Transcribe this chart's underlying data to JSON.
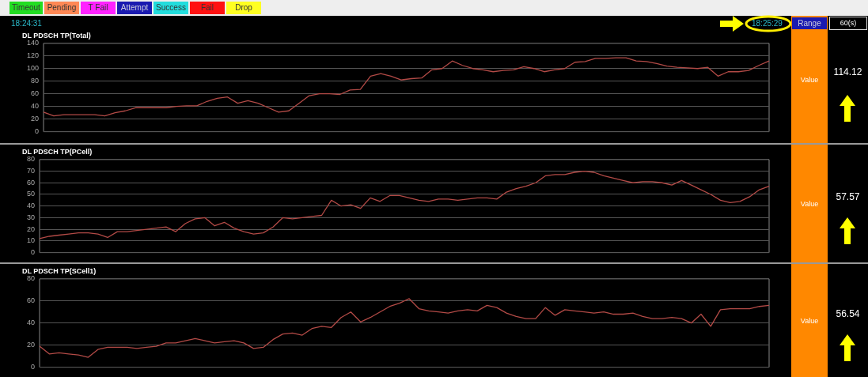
{
  "chart_data": [
    {
      "type": "other",
      "annotations": [
        "Timeout",
        "Pending",
        "T Fail",
        "Attempt",
        "Success",
        "Fail",
        "Drop",
        "18:24:31",
        "18:25:29",
        "Range",
        "60(s)"
      ],
      "colors": [
        "#22dd22",
        "#ff8855",
        "#ff22ff",
        "#1a1ab0",
        "#22dddd",
        "#ff1111",
        "#ffff22"
      ]
    },
    {
      "type": "line",
      "title": "DL PDSCH TP(Total)",
      "categories": [
        null,
        null,
        null,
        null,
        null,
        null,
        null,
        null,
        null,
        null,
        null,
        null,
        null,
        null,
        null,
        null,
        null,
        null,
        null,
        null,
        null,
        null,
        null,
        null,
        null,
        null,
        null,
        null,
        null,
        null,
        null,
        null,
        null,
        null,
        null,
        null,
        null,
        null,
        null,
        null,
        null,
        null,
        null,
        null,
        null,
        null,
        null,
        null,
        null,
        null,
        null,
        null,
        null,
        null,
        null,
        null,
        null,
        null,
        null,
        null,
        null,
        null,
        null,
        null,
        null,
        null,
        null,
        null,
        null,
        null,
        null,
        null
      ],
      "series": [
        {
          "color": "#b24a46",
          "values": [
            31,
            25,
            27,
            27,
            27,
            27,
            25,
            30,
            33,
            38,
            38,
            38,
            38,
            40,
            41,
            41,
            48,
            53,
            55,
            45,
            49,
            45,
            38,
            31,
            33,
            45,
            57,
            60,
            60,
            59,
            66,
            67,
            88,
            92,
            88,
            82,
            84,
            85,
            98,
            100,
            112,
            105,
            100,
            98,
            95,
            97,
            98,
            103,
            100,
            95,
            98,
            100,
            110,
            111,
            116,
            116,
            117,
            117,
            112,
            111,
            108,
            104,
            102,
            101,
            100,
            102,
            88,
            95,
            95,
            97,
            105,
            112
          ]
        }
      ],
      "ylim": [
        0,
        140
      ],
      "yticks": [
        0,
        20,
        40,
        60,
        80,
        100,
        120,
        140
      ],
      "grid": "y",
      "legend": false,
      "marker": "none",
      "line_style": "solid",
      "tick_labels": "y",
      "annotations": [
        "Value",
        "114.12"
      ]
    },
    {
      "type": "line",
      "title": "DL PDSCH TP(PCell)",
      "categories": [
        null,
        null,
        null,
        null,
        null,
        null,
        null,
        null,
        null,
        null,
        null,
        null,
        null,
        null,
        null,
        null,
        null,
        null,
        null,
        null,
        null,
        null,
        null,
        null,
        null,
        null,
        null,
        null,
        null,
        null,
        null,
        null,
        null,
        null,
        null,
        null,
        null,
        null,
        null,
        null,
        null,
        null,
        null,
        null,
        null,
        null,
        null,
        null,
        null,
        null,
        null,
        null,
        null,
        null,
        null,
        null,
        null,
        null,
        null,
        null,
        null,
        null,
        null,
        null,
        null,
        null,
        null,
        null,
        null,
        null,
        null,
        null,
        null,
        null,
        null,
        null
      ],
      "series": [
        {
          "color": "#b24a46",
          "values": [
            12,
            14,
            15,
            16,
            17,
            17,
            16,
            13,
            18,
            18,
            19,
            20,
            21,
            22,
            18,
            25,
            29,
            30,
            23,
            26,
            21,
            18,
            16,
            17,
            22,
            30,
            29,
            30,
            31,
            32,
            45,
            40,
            41,
            38,
            47,
            44,
            49,
            49,
            47,
            45,
            44,
            46,
            46,
            45,
            46,
            47,
            47,
            46,
            52,
            55,
            57,
            60,
            66,
            67,
            67,
            69,
            70,
            69,
            66,
            64,
            62,
            60,
            61,
            61,
            60,
            58,
            62,
            58,
            54,
            50,
            45,
            43,
            44,
            48,
            54,
            57
          ]
        }
      ],
      "ylim": [
        0,
        80
      ],
      "yticks": [
        0,
        10,
        20,
        30,
        40,
        50,
        60,
        70,
        80
      ],
      "grid": "y",
      "legend": false,
      "marker": "none",
      "line_style": "solid",
      "tick_labels": "y",
      "annotations": [
        "Value",
        "57.57"
      ]
    },
    {
      "type": "line",
      "title": "DL PDSCH TP(SCell1)",
      "categories": [
        null,
        null,
        null,
        null,
        null,
        null,
        null,
        null,
        null,
        null,
        null,
        null,
        null,
        null,
        null,
        null,
        null,
        null,
        null,
        null,
        null,
        null,
        null,
        null,
        null,
        null,
        null,
        null,
        null,
        null,
        null,
        null,
        null,
        null,
        null,
        null,
        null,
        null,
        null,
        null,
        null,
        null,
        null,
        null,
        null,
        null,
        null,
        null,
        null,
        null,
        null,
        null,
        null,
        null,
        null,
        null,
        null,
        null,
        null,
        null,
        null,
        null,
        null,
        null,
        null,
        null,
        null,
        null,
        null,
        null,
        null,
        null,
        null,
        null,
        null,
        null
      ],
      "series": [
        {
          "color": "#b24a46",
          "values": [
            19,
            12,
            13,
            12,
            11,
            9,
            16,
            18,
            18,
            18,
            17,
            18,
            19,
            22,
            22,
            24,
            26,
            24,
            22,
            23,
            24,
            22,
            17,
            18,
            25,
            30,
            31,
            29,
            35,
            37,
            36,
            45,
            50,
            41,
            45,
            50,
            55,
            58,
            62,
            53,
            51,
            50,
            49,
            51,
            52,
            51,
            56,
            54,
            49,
            46,
            44,
            44,
            54,
            47,
            52,
            51,
            50,
            49,
            50,
            48,
            48,
            49,
            46,
            44,
            44,
            45,
            44,
            40,
            48,
            37,
            52,
            53,
            53,
            53,
            55,
            56
          ]
        }
      ],
      "ylim": [
        0,
        80
      ],
      "yticks": [
        0,
        20,
        40,
        60,
        80
      ],
      "grid": "y",
      "legend": false,
      "marker": "none",
      "line_style": "solid",
      "tick_labels": "y",
      "annotations": [
        "Value",
        "56.54"
      ]
    }
  ]
}
